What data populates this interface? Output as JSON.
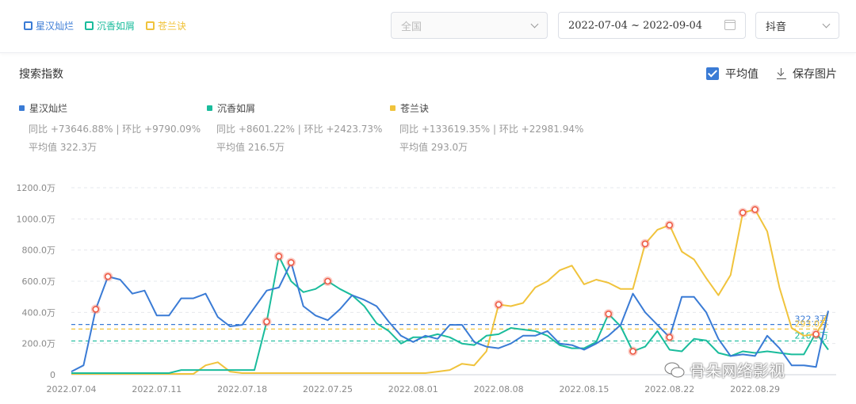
{
  "header": {
    "legend": [
      {
        "label": "星汉灿烂",
        "color": "#3a7bd5"
      },
      {
        "label": "沉香如屑",
        "color": "#1abc9c"
      },
      {
        "label": "苍兰诀",
        "color": "#f0c33c"
      }
    ],
    "region_placeholder": "全国",
    "date_range": "2022-07-04 ~ 2022-09-04",
    "platform": "抖音"
  },
  "panel": {
    "title": "搜索指数",
    "avg_label": "平均值",
    "avg_checked": true,
    "save_label": "保存图片"
  },
  "stats": [
    {
      "name": "星汉灿烂",
      "color": "#3a7bd5",
      "compare": "同比 +73646.88% | 环比 +9790.09%",
      "average": "平均值 322.3万"
    },
    {
      "name": "沉香如屑",
      "color": "#1abc9c",
      "compare": "同比 +8601.22% | 环比 +2423.73%",
      "average": "平均值 216.5万"
    },
    {
      "name": "苍兰诀",
      "color": "#f0c33c",
      "compare": "同比 +133619.35% | 环比 +22981.94%",
      "average": "平均值 293.0万"
    }
  ],
  "chart_data": {
    "type": "line",
    "title": "搜索指数",
    "x": [
      "2022.07.04",
      "2022.07.05",
      "2022.07.06",
      "2022.07.07",
      "2022.07.08",
      "2022.07.09",
      "2022.07.10",
      "2022.07.11",
      "2022.07.12",
      "2022.07.13",
      "2022.07.14",
      "2022.07.15",
      "2022.07.16",
      "2022.07.17",
      "2022.07.18",
      "2022.07.19",
      "2022.07.20",
      "2022.07.21",
      "2022.07.22",
      "2022.07.23",
      "2022.07.24",
      "2022.07.25",
      "2022.07.26",
      "2022.07.27",
      "2022.07.28",
      "2022.07.29",
      "2022.07.30",
      "2022.07.31",
      "2022.08.01",
      "2022.08.02",
      "2022.08.03",
      "2022.08.04",
      "2022.08.05",
      "2022.08.06",
      "2022.08.07",
      "2022.08.08",
      "2022.08.09",
      "2022.08.10",
      "2022.08.11",
      "2022.08.12",
      "2022.08.13",
      "2022.08.14",
      "2022.08.15",
      "2022.08.16",
      "2022.08.17",
      "2022.08.18",
      "2022.08.19",
      "2022.08.20",
      "2022.08.21",
      "2022.08.22",
      "2022.08.23",
      "2022.08.24",
      "2022.08.25",
      "2022.08.26",
      "2022.08.27",
      "2022.08.28",
      "2022.08.29",
      "2022.08.30",
      "2022.08.31",
      "2022.09.01",
      "2022.09.02",
      "2022.09.03",
      "2022.09.04"
    ],
    "x_ticks": [
      "2022.07.04",
      "2022.07.11",
      "2022.07.18",
      "2022.07.25",
      "2022.08.01",
      "2022.08.08",
      "2022.08.15",
      "2022.08.22",
      "2022.08.29"
    ],
    "y_ticks": [
      "0",
      "200.0万",
      "400.0万",
      "600.0万",
      "800.0万",
      "1000.0万",
      "1200.0万"
    ],
    "ylim": [
      0,
      1200
    ],
    "unit": "万",
    "grid": true,
    "series": [
      {
        "name": "星汉灿烂",
        "color": "#3a7bd5",
        "average": 322.3,
        "average_label": "322.3万",
        "values": [
          20,
          60,
          420,
          630,
          610,
          520,
          540,
          380,
          380,
          490,
          490,
          520,
          370,
          310,
          320,
          430,
          540,
          560,
          720,
          440,
          380,
          350,
          420,
          510,
          480,
          440,
          340,
          250,
          210,
          250,
          230,
          320,
          320,
          210,
          180,
          170,
          200,
          250,
          250,
          280,
          200,
          190,
          160,
          200,
          250,
          320,
          520,
          400,
          320,
          240,
          500,
          500,
          400,
          230,
          120,
          130,
          120,
          250,
          170,
          60,
          60,
          50,
          410
        ]
      },
      {
        "name": "沉香如屑",
        "color": "#1abc9c",
        "average": 216.5,
        "average_label": "216.5万",
        "values": [
          10,
          10,
          10,
          10,
          10,
          10,
          10,
          10,
          10,
          30,
          30,
          30,
          30,
          30,
          30,
          30,
          340,
          760,
          600,
          530,
          550,
          600,
          550,
          510,
          440,
          330,
          280,
          200,
          240,
          240,
          260,
          240,
          200,
          190,
          250,
          260,
          300,
          290,
          280,
          250,
          190,
          170,
          170,
          210,
          390,
          310,
          150,
          180,
          280,
          160,
          150,
          230,
          220,
          140,
          120,
          150,
          140,
          150,
          140,
          130,
          130,
          270,
          160
        ]
      },
      {
        "name": "苍兰诀",
        "color": "#f0c33c",
        "average": 293.0,
        "average_label": "293.0万",
        "values": [
          5,
          5,
          5,
          5,
          5,
          5,
          5,
          5,
          5,
          5,
          5,
          60,
          80,
          20,
          10,
          10,
          10,
          10,
          10,
          10,
          10,
          10,
          10,
          10,
          10,
          10,
          10,
          10,
          10,
          10,
          20,
          30,
          70,
          60,
          150,
          450,
          440,
          460,
          560,
          600,
          670,
          700,
          580,
          610,
          590,
          550,
          550,
          840,
          930,
          960,
          790,
          740,
          620,
          510,
          640,
          1040,
          1060,
          920,
          560,
          300,
          250,
          260,
          400
        ]
      }
    ],
    "markers": {
      "星汉灿烂": [
        2,
        3,
        18,
        49
      ],
      "沉香如屑": [
        16,
        17,
        21,
        44,
        46
      ],
      "苍兰诀": [
        35,
        47,
        49,
        55,
        56,
        61
      ]
    }
  },
  "watermark": "骨朵网络影视"
}
